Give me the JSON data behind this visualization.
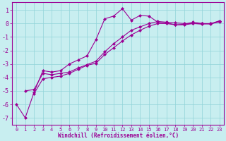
{
  "xlabel": "Windchill (Refroidissement éolien,°C)",
  "bg_color": "#c8eef0",
  "line_color": "#9b0094",
  "grid_color": "#90d4d8",
  "xlim": [
    -0.5,
    23.5
  ],
  "ylim": [
    -7.5,
    1.6
  ],
  "xticks": [
    0,
    1,
    2,
    3,
    4,
    5,
    6,
    7,
    8,
    9,
    10,
    11,
    12,
    13,
    14,
    15,
    16,
    17,
    18,
    19,
    20,
    21,
    22,
    23
  ],
  "yticks": [
    1,
    0,
    -1,
    -2,
    -3,
    -4,
    -5,
    -6,
    -7
  ],
  "series1_x": [
    0,
    1,
    2,
    3,
    4,
    5,
    6,
    7,
    8,
    9,
    10,
    11,
    12,
    13,
    14,
    15,
    16,
    17,
    18,
    19,
    20,
    21,
    22,
    23
  ],
  "series1_y": [
    -6.0,
    -7.0,
    -5.1,
    -3.5,
    -3.6,
    -3.5,
    -3.0,
    -2.7,
    -2.4,
    -1.2,
    0.35,
    0.55,
    1.1,
    0.25,
    0.6,
    0.55,
    0.1,
    0.05,
    -0.1,
    -0.05,
    0.1,
    0.0,
    -0.05,
    0.2
  ],
  "series2_x": [
    1,
    2,
    3,
    4,
    5,
    6,
    7,
    8,
    9,
    10,
    11,
    12,
    13,
    14,
    15,
    16,
    17,
    18,
    19,
    20,
    21,
    22,
    23
  ],
  "series2_y": [
    -5.0,
    -4.9,
    -3.7,
    -3.8,
    -3.7,
    -3.6,
    -3.3,
    -3.05,
    -2.8,
    -2.1,
    -1.5,
    -1.0,
    -0.5,
    -0.25,
    0.0,
    0.15,
    0.1,
    0.05,
    0.0,
    0.0,
    -0.05,
    0.0,
    0.2
  ],
  "series3_x": [
    2,
    3,
    4,
    5,
    6,
    7,
    8,
    9,
    10,
    11,
    12,
    13,
    14,
    15,
    16,
    17,
    18,
    19,
    20,
    21,
    22,
    23
  ],
  "series3_y": [
    -5.2,
    -4.1,
    -4.0,
    -3.9,
    -3.7,
    -3.4,
    -3.1,
    -2.95,
    -2.3,
    -1.8,
    -1.3,
    -0.85,
    -0.5,
    -0.2,
    0.0,
    0.0,
    -0.1,
    -0.1,
    0.0,
    0.0,
    0.0,
    0.1
  ],
  "marker": "D",
  "markersize": 2.5,
  "linewidth": 0.8
}
